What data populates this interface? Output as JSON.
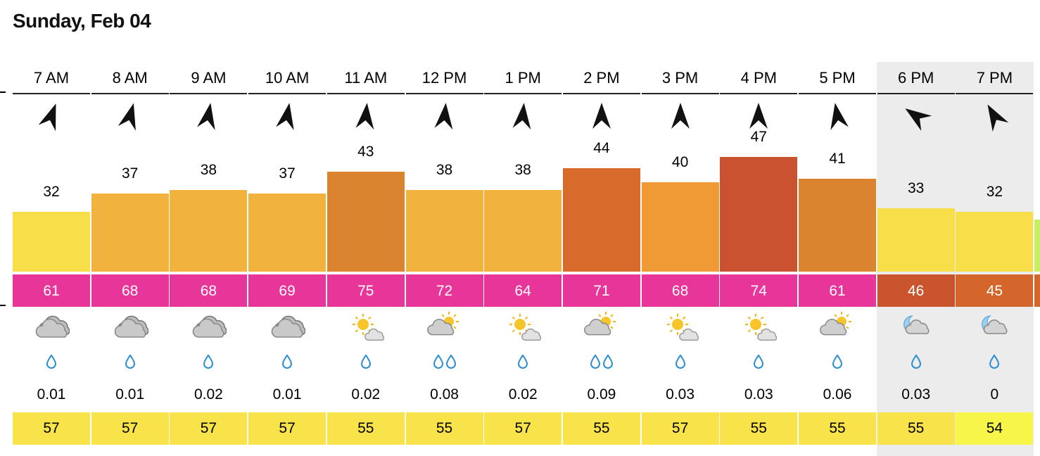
{
  "day_title": "Sunday, Feb 04",
  "scale_max": 47,
  "hours": [
    {
      "time": "7 AM",
      "wind_dir": 20,
      "gust": 32,
      "gust_color": "#f8df4a",
      "temp": 61,
      "temp_color": "#e8359a",
      "sky": "cloudy-icon",
      "drops": 1,
      "precip": "0.01",
      "dew": 57,
      "dew_color": "#f8e34a",
      "night": false
    },
    {
      "time": "8 AM",
      "wind_dir": 15,
      "gust": 37,
      "gust_color": "#f1b23e",
      "temp": 68,
      "temp_color": "#e8359a",
      "sky": "cloudy-icon",
      "drops": 1,
      "precip": "0.01",
      "dew": 57,
      "dew_color": "#f8e34a",
      "night": false
    },
    {
      "time": "9 AM",
      "wind_dir": 10,
      "gust": 38,
      "gust_color": "#f1b23e",
      "temp": 68,
      "temp_color": "#e8359a",
      "sky": "cloudy-icon",
      "drops": 1,
      "precip": "0.02",
      "dew": 57,
      "dew_color": "#f8e34a",
      "night": false
    },
    {
      "time": "10 AM",
      "wind_dir": 10,
      "gust": 37,
      "gust_color": "#f1b23e",
      "temp": 69,
      "temp_color": "#e8359a",
      "sky": "cloudy-icon",
      "drops": 1,
      "precip": "0.01",
      "dew": 57,
      "dew_color": "#f8e34a",
      "night": false
    },
    {
      "time": "11 AM",
      "wind_dir": 5,
      "gust": 43,
      "gust_color": "#da842f",
      "temp": 75,
      "temp_color": "#e8359a",
      "sky": "sun-cloud-icon",
      "drops": 1,
      "precip": "0.02",
      "dew": 55,
      "dew_color": "#f8e34a",
      "night": false
    },
    {
      "time": "12 PM",
      "wind_dir": 5,
      "gust": 38,
      "gust_color": "#f1b23e",
      "temp": 72,
      "temp_color": "#e8359a",
      "sky": "partly-cloudy-icon",
      "drops": 2,
      "precip": "0.08",
      "dew": 55,
      "dew_color": "#f8e34a",
      "night": false
    },
    {
      "time": "1 PM",
      "wind_dir": 5,
      "gust": 38,
      "gust_color": "#f1b23e",
      "temp": 64,
      "temp_color": "#e8359a",
      "sky": "sun-cloud-icon",
      "drops": 1,
      "precip": "0.02",
      "dew": 57,
      "dew_color": "#f8e34a",
      "night": false
    },
    {
      "time": "2 PM",
      "wind_dir": 0,
      "gust": 44,
      "gust_color": "#d86a2b",
      "temp": 71,
      "temp_color": "#e8359a",
      "sky": "partly-cloudy-icon",
      "drops": 2,
      "precip": "0.09",
      "dew": 55,
      "dew_color": "#f8e34a",
      "night": false
    },
    {
      "time": "3 PM",
      "wind_dir": 0,
      "gust": 40,
      "gust_color": "#f09a36",
      "temp": 68,
      "temp_color": "#e8359a",
      "sky": "sun-cloud-icon",
      "drops": 1,
      "precip": "0.03",
      "dew": 57,
      "dew_color": "#f8e34a",
      "night": false
    },
    {
      "time": "4 PM",
      "wind_dir": 0,
      "gust": 47,
      "gust_color": "#cb5230",
      "temp": 74,
      "temp_color": "#e8359a",
      "sky": "sun-cloud-icon",
      "drops": 1,
      "precip": "0.03",
      "dew": 55,
      "dew_color": "#f8e34a",
      "night": false
    },
    {
      "time": "5 PM",
      "wind_dir": -10,
      "gust": 41,
      "gust_color": "#da842f",
      "temp": 61,
      "temp_color": "#e8359a",
      "sky": "partly-cloudy-icon",
      "drops": 1,
      "precip": "0.06",
      "dew": 55,
      "dew_color": "#f8e34a",
      "night": false
    },
    {
      "time": "6 PM",
      "wind_dir": -55,
      "gust": 33,
      "gust_color": "#f8df4a",
      "temp": 46,
      "temp_color": "#c9542e",
      "sky": "moon-cloud-icon",
      "drops": 1,
      "precip": "0.03",
      "dew": 55,
      "dew_color": "#f8e34a",
      "night": true
    },
    {
      "time": "7 PM",
      "wind_dir": -30,
      "gust": 32,
      "gust_color": "#f8df4a",
      "temp": 45,
      "temp_color": "#d5662b",
      "sky": "moon-cloud-icon",
      "drops": 1,
      "precip": "0",
      "dew": 54,
      "dew_color": "#f8f54a",
      "night": true
    }
  ],
  "next_column_color": "#c7ef62"
}
